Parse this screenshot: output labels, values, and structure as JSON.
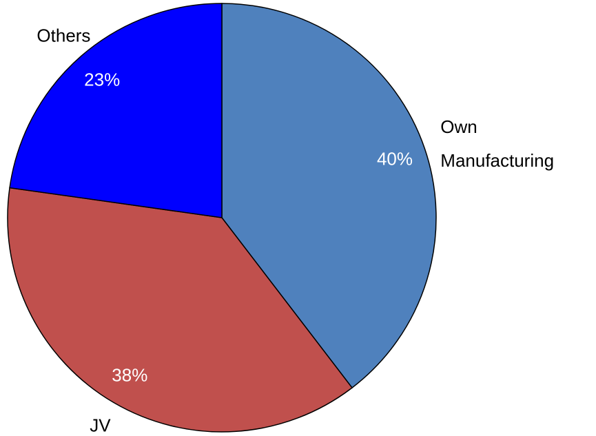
{
  "chart_data": {
    "type": "pie",
    "categories": [
      "Own Manufacturing",
      "JV",
      "Others"
    ],
    "values": [
      40,
      38,
      23
    ],
    "value_labels": [
      "40%",
      "38%",
      "23%"
    ],
    "colors": [
      "#4f81bd",
      "#c0504d",
      "#0000ff"
    ]
  }
}
